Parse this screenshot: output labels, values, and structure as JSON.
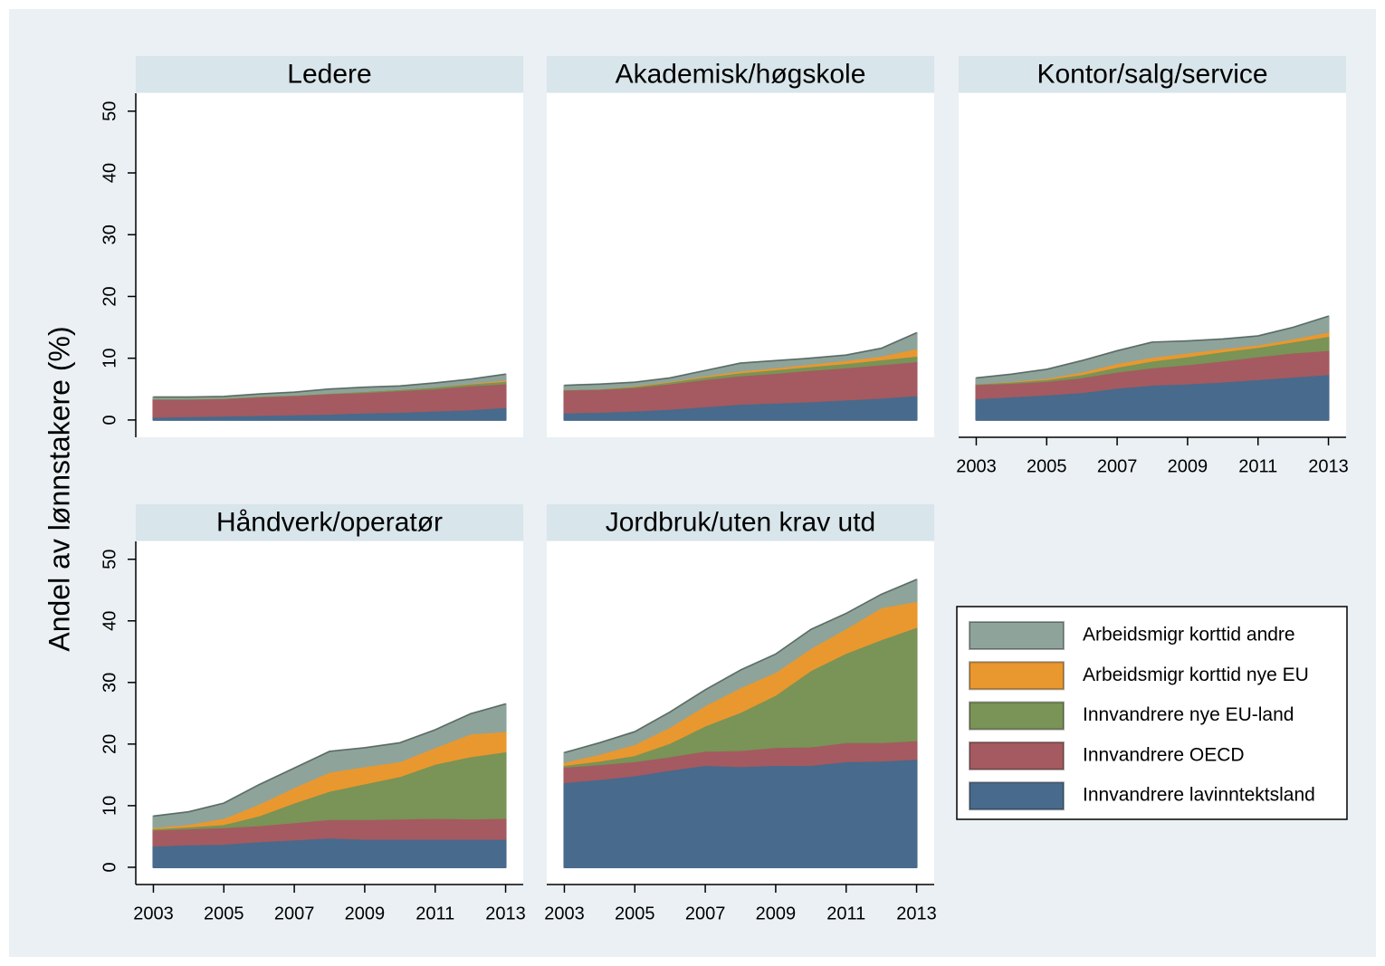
{
  "chart_data": [
    {
      "type": "area",
      "stacked": true,
      "title": "Ledere",
      "ylabel": "Andel av lønnstakere (%)",
      "x": [
        2003,
        2004,
        2005,
        2006,
        2007,
        2008,
        2009,
        2010,
        2011,
        2012,
        2013
      ],
      "xlim": [
        2002.5,
        2013.5
      ],
      "ylim": [
        -2.8,
        52.9
      ],
      "yticks": [
        0,
        10,
        20,
        30,
        40,
        50
      ],
      "series": [
        {
          "name": "Innvandrere lavinntektsland",
          "color": "#486a8c",
          "values": [
            0.5,
            0.6,
            0.7,
            0.8,
            0.9,
            1.0,
            1.2,
            1.3,
            1.5,
            1.7,
            2.1
          ]
        },
        {
          "name": "Innvandrere OECD",
          "color": "#a45a60",
          "values": [
            2.9,
            2.8,
            2.8,
            3.0,
            3.1,
            3.3,
            3.3,
            3.5,
            3.6,
            3.9,
            3.8
          ]
        },
        {
          "name": "Innvandrere nye EU-land",
          "color": "#7a9356",
          "values": [
            0.1,
            0.1,
            0.1,
            0.1,
            0.1,
            0.1,
            0.2,
            0.2,
            0.3,
            0.3,
            0.4
          ]
        },
        {
          "name": "Arbeidsmigr korttid nye EU",
          "color": "#e9982f",
          "values": [
            0,
            0,
            0,
            0,
            0,
            0,
            0,
            0,
            0,
            0.1,
            0.2
          ]
        },
        {
          "name": "Arbeidsmigr korttid andre",
          "color": "#8ea49b",
          "values": [
            0.2,
            0.2,
            0.2,
            0.3,
            0.4,
            0.6,
            0.6,
            0.5,
            0.6,
            0.6,
            0.9
          ]
        }
      ]
    },
    {
      "type": "area",
      "stacked": true,
      "title": "Akademisk/høgskole",
      "x": [
        2003,
        2004,
        2005,
        2006,
        2007,
        2008,
        2009,
        2010,
        2011,
        2012,
        2013
      ],
      "xlim": [
        2002.5,
        2013.5
      ],
      "ylim": [
        -2.8,
        52.9
      ],
      "series": [
        {
          "name": "Innvandrere lavinntektsland",
          "color": "#486a8c",
          "values": [
            1.2,
            1.3,
            1.5,
            1.8,
            2.2,
            2.6,
            2.8,
            3.0,
            3.3,
            3.6,
            4.0
          ]
        },
        {
          "name": "Innvandrere OECD",
          "color": "#a45a60",
          "values": [
            3.7,
            3.7,
            3.8,
            4.1,
            4.4,
            4.6,
            4.8,
            5.1,
            5.2,
            5.4,
            5.5
          ]
        },
        {
          "name": "Innvandrere nye EU-land",
          "color": "#7a9356",
          "values": [
            0.1,
            0.1,
            0.2,
            0.3,
            0.4,
            0.5,
            0.6,
            0.6,
            0.7,
            0.8,
            0.9
          ]
        },
        {
          "name": "Arbeidsmigr korttid nye EU",
          "color": "#e9982f",
          "values": [
            0,
            0,
            0.1,
            0.1,
            0.2,
            0.3,
            0.3,
            0.4,
            0.5,
            0.6,
            1.2
          ]
        },
        {
          "name": "Arbeidsmigr korttid andre",
          "color": "#8ea49b",
          "values": [
            0.6,
            0.7,
            0.5,
            0.5,
            0.8,
            1.2,
            1.1,
            0.9,
            0.8,
            1.2,
            2.5
          ]
        }
      ]
    },
    {
      "type": "area",
      "stacked": true,
      "title": "Kontor/salg/service",
      "x": [
        2003,
        2004,
        2005,
        2006,
        2007,
        2008,
        2009,
        2010,
        2011,
        2012,
        2013
      ],
      "xlim": [
        2002.5,
        2013.5
      ],
      "ylim": [
        -2.8,
        52.9
      ],
      "xticks": [
        2003,
        2005,
        2007,
        2009,
        2011,
        2013
      ],
      "series": [
        {
          "name": "Innvandrere lavinntektsland",
          "color": "#486a8c",
          "values": [
            3.5,
            3.8,
            4.1,
            4.5,
            5.2,
            5.7,
            5.9,
            6.2,
            6.6,
            7.0,
            7.4
          ]
        },
        {
          "name": "Innvandrere OECD",
          "color": "#a45a60",
          "values": [
            2.3,
            2.2,
            2.2,
            2.4,
            2.6,
            2.8,
            3.1,
            3.4,
            3.7,
            3.9,
            3.9
          ]
        },
        {
          "name": "Innvandrere nye EU-land",
          "color": "#7a9356",
          "values": [
            0.1,
            0.2,
            0.3,
            0.5,
            0.8,
            1.1,
            1.3,
            1.5,
            1.5,
            1.8,
            2.3
          ]
        },
        {
          "name": "Arbeidsmigr korttid nye EU",
          "color": "#e9982f",
          "values": [
            0,
            0.1,
            0.2,
            0.4,
            0.6,
            0.6,
            0.6,
            0.5,
            0.4,
            0.5,
            0.7
          ]
        },
        {
          "name": "Arbeidsmigr korttid andre",
          "color": "#8ea49b",
          "values": [
            0.9,
            1.1,
            1.4,
            1.8,
            2.0,
            2.4,
            1.9,
            1.5,
            1.4,
            1.8,
            2.5
          ]
        }
      ]
    },
    {
      "type": "area",
      "stacked": true,
      "title": "Håndverk/operatør",
      "x": [
        2003,
        2004,
        2005,
        2006,
        2007,
        2008,
        2009,
        2010,
        2011,
        2012,
        2013
      ],
      "xlim": [
        2002.5,
        2013.5
      ],
      "ylim": [
        -2.8,
        52.9
      ],
      "xticks": [
        2003,
        2005,
        2007,
        2009,
        2011,
        2013
      ],
      "yticks": [
        0,
        10,
        20,
        30,
        40,
        50
      ],
      "series": [
        {
          "name": "Innvandrere lavinntektsland",
          "color": "#486a8c",
          "values": [
            3.5,
            3.7,
            3.8,
            4.2,
            4.5,
            4.8,
            4.6,
            4.6,
            4.6,
            4.6,
            4.6
          ]
        },
        {
          "name": "Innvandrere OECD",
          "color": "#a45a60",
          "values": [
            2.6,
            2.6,
            2.7,
            2.6,
            2.8,
            3.0,
            3.2,
            3.3,
            3.4,
            3.3,
            3.4
          ]
        },
        {
          "name": "Innvandrere nye EU-land",
          "color": "#7a9356",
          "values": [
            0.2,
            0.3,
            0.5,
            1.6,
            3.2,
            4.6,
            5.8,
            6.9,
            8.8,
            10.1,
            10.8
          ]
        },
        {
          "name": "Arbeidsmigr korttid nye EU",
          "color": "#e9982f",
          "values": [
            0.2,
            0.4,
            1.0,
            1.9,
            2.5,
            3.1,
            2.8,
            2.4,
            2.7,
            3.7,
            3.3
          ]
        },
        {
          "name": "Arbeidsmigr korttid andre",
          "color": "#8ea49b",
          "values": [
            1.8,
            2.0,
            2.4,
            3.1,
            3.1,
            3.3,
            3.0,
            3.0,
            2.8,
            3.2,
            4.4
          ]
        }
      ]
    },
    {
      "type": "area",
      "stacked": true,
      "title": "Jordbruk/uten krav utd",
      "legend": "right",
      "x": [
        2003,
        2004,
        2005,
        2006,
        2007,
        2008,
        2009,
        2010,
        2011,
        2012,
        2013
      ],
      "xlim": [
        2002.5,
        2013.5
      ],
      "ylim": [
        -2.8,
        52.9
      ],
      "xticks": [
        2003,
        2005,
        2007,
        2009,
        2011,
        2013
      ],
      "series": [
        {
          "name": "Innvandrere lavinntektsland",
          "color": "#486a8c",
          "values": [
            13.8,
            14.3,
            14.9,
            15.8,
            16.6,
            16.4,
            16.6,
            16.6,
            17.2,
            17.3,
            17.6
          ]
        },
        {
          "name": "Innvandrere OECD",
          "color": "#a45a60",
          "values": [
            2.5,
            2.4,
            2.3,
            2.2,
            2.3,
            2.6,
            2.9,
            3.0,
            3.1,
            3.0,
            3.0
          ]
        },
        {
          "name": "Innvandrere nye EU-land",
          "color": "#7a9356",
          "values": [
            0.3,
            0.6,
            1.0,
            2.2,
            4.1,
            6.2,
            8.5,
            12.4,
            14.5,
            16.7,
            18.4
          ]
        },
        {
          "name": "Arbeidsmigr korttid nye EU",
          "color": "#e9982f",
          "values": [
            0.5,
            1.1,
            1.8,
            2.6,
            3.3,
            4.0,
            3.7,
            3.6,
            4.0,
            5.2,
            4.2
          ]
        },
        {
          "name": "Arbeidsmigr korttid andre",
          "color": "#8ea49b",
          "values": [
            1.5,
            1.8,
            2.0,
            2.4,
            2.5,
            2.8,
            2.9,
            3.0,
            2.4,
            2.1,
            3.5
          ]
        }
      ]
    }
  ]
}
